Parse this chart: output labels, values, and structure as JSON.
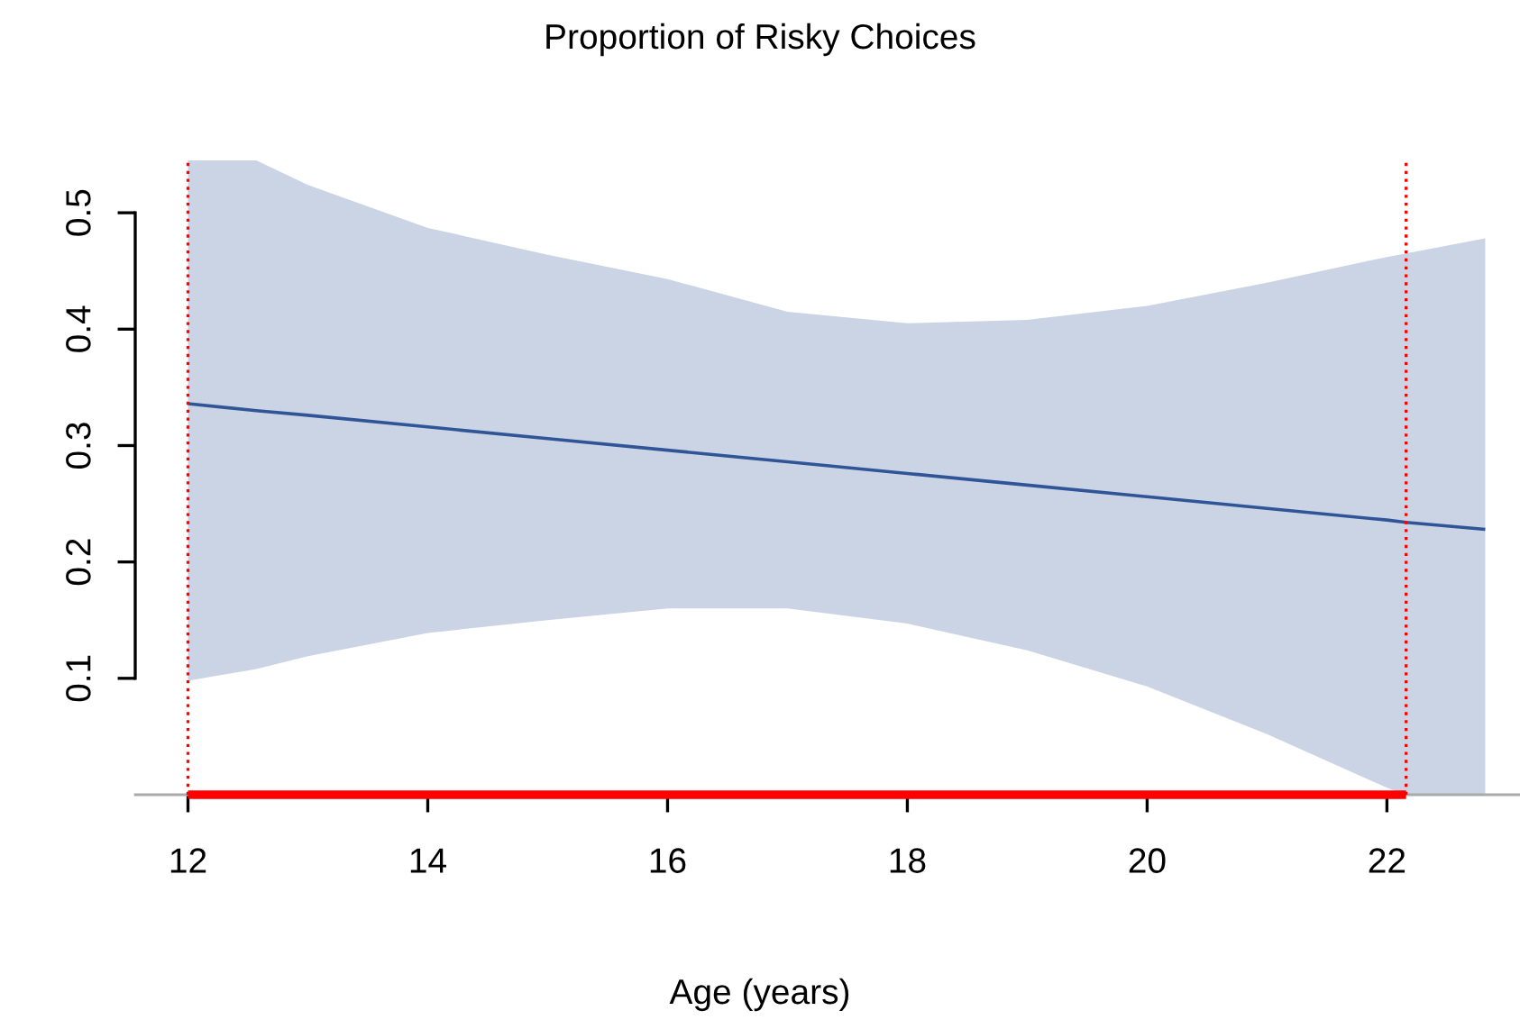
{
  "chart_data": {
    "type": "line",
    "title": "Proportion of Risky Choices",
    "xlabel": "Age (years)",
    "series": [
      {
        "color": "#2f5597",
        "x": [
          12,
          12.57,
          13,
          14,
          15,
          16,
          17,
          18,
          19,
          20,
          21,
          22,
          22.16,
          22.82
        ],
        "values": [
          0.336,
          0.33,
          0.326,
          0.316,
          0.306,
          0.296,
          0.286,
          0.276,
          0.266,
          0.256,
          0.246,
          0.236,
          0.234,
          0.228
        ],
        "lower": [
          0.098,
          0.108,
          0.119,
          0.139,
          0.15,
          0.16,
          0.16,
          0.147,
          0.124,
          0.093,
          0.052,
          0.006,
          0,
          0
        ],
        "upper": [
          0.545,
          0.545,
          0.524,
          0.487,
          0.464,
          0.443,
          0.415,
          0.405,
          0.408,
          0.42,
          0.44,
          0.462,
          0.465,
          0.478
        ]
      },
      {
        "color": "#ff0000",
        "x": [
          12,
          22.16
        ],
        "values": [
          0,
          0
        ]
      }
    ],
    "xlim": [
      11.56,
      23.11
    ],
    "ylim": [
      0,
      0.545
    ],
    "xticks": [
      12,
      14,
      16,
      18,
      20,
      22
    ],
    "yticks": [
      0.1,
      0.2,
      0.3,
      0.4,
      0.5
    ],
    "ref_lines": [
      {
        "axis": "x",
        "value": 12,
        "color": "#ff0000",
        "line_style": "dotted"
      },
      {
        "axis": "x",
        "value": 22.16,
        "color": "#ff0000",
        "line_style": "dotted"
      }
    ],
    "grid": false,
    "legend": false
  }
}
